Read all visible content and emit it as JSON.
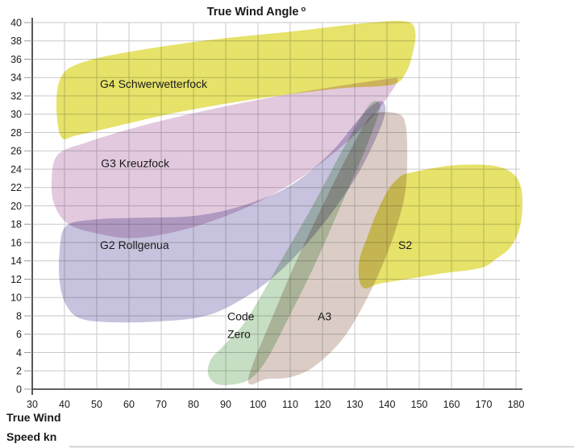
{
  "title": {
    "text": "True Wind Angle",
    "degree_suffix": "o"
  },
  "y_axis_label": {
    "line1": "True Wind",
    "line2": "Speed kn"
  },
  "chart_data": {
    "type": "area",
    "title": "True Wind Angle °",
    "xlabel": "True Wind Angle °",
    "ylabel": "True Wind Speed kn",
    "xlim": [
      30,
      180
    ],
    "ylim": [
      0,
      40
    ],
    "x_ticks": [
      30,
      40,
      50,
      60,
      70,
      80,
      90,
      100,
      110,
      120,
      130,
      140,
      150,
      160,
      170,
      180
    ],
    "y_ticks": [
      0,
      2,
      4,
      6,
      8,
      10,
      12,
      14,
      16,
      18,
      20,
      22,
      24,
      26,
      28,
      30,
      32,
      34,
      36,
      38,
      40
    ],
    "grid": true,
    "colors": {
      "grid": "#cacaca",
      "axis": "#2d2d2d",
      "tick": "#9a9a9a",
      "text": "#1a1a1a",
      "bottom_rule": "#c8c8c8"
    },
    "regions": [
      {
        "name": "G4 Schwerwetterfock",
        "color": "#e6e26a",
        "label": {
          "lines": [
            "G4 Schwerwetterfock"
          ],
          "angle": 51,
          "kn": 32.9
        },
        "outline_angle_kn": [
          [
            39,
            27.5
          ],
          [
            37.5,
            31
          ],
          [
            39,
            34.1
          ],
          [
            45,
            35.6
          ],
          [
            60,
            36.8
          ],
          [
            85,
            38.1
          ],
          [
            112.5,
            39.1
          ],
          [
            135,
            40
          ],
          [
            146.3,
            40.1
          ],
          [
            148.8,
            38.9
          ],
          [
            148,
            36.7
          ],
          [
            145.8,
            34.5
          ],
          [
            141.3,
            33.2
          ],
          [
            125,
            32.8
          ],
          [
            100,
            31.7
          ],
          [
            75,
            30.2
          ],
          [
            55,
            28.6
          ],
          [
            43.8,
            27.7
          ]
        ]
      },
      {
        "name": "G3 Kreuzfock",
        "color": "#e2c9de",
        "label": {
          "lines": [
            "G3 Kreuzfock"
          ],
          "angle": 51.3,
          "kn": 24.2
        },
        "outline_angle_kn": [
          [
            38,
            25.6
          ],
          [
            36,
            22.7
          ],
          [
            37,
            20
          ],
          [
            41.3,
            18
          ],
          [
            50,
            17
          ],
          [
            62.5,
            16.5
          ],
          [
            80,
            17.7
          ],
          [
            97.5,
            20
          ],
          [
            112.5,
            22.9
          ],
          [
            125,
            26.2
          ],
          [
            135,
            29.5
          ],
          [
            142,
            32.8
          ],
          [
            143.3,
            33.8
          ],
          [
            141.3,
            33.9
          ],
          [
            127.5,
            33.2
          ],
          [
            105,
            31.9
          ],
          [
            82.5,
            30.3
          ],
          [
            62.5,
            28.6
          ],
          [
            47.5,
            27
          ]
        ]
      },
      {
        "name": "G2 Rollgenua",
        "color": "#c7c2dd",
        "label": {
          "lines": [
            "G2 Rollgenua"
          ],
          "angle": 51,
          "kn": 15.3
        },
        "outline_angle_kn": [
          [
            40.5,
            17.8
          ],
          [
            38.5,
            15.2
          ],
          [
            38.5,
            11.7
          ],
          [
            40.5,
            9.2
          ],
          [
            45,
            7.7
          ],
          [
            55,
            7.3
          ],
          [
            70,
            7.4
          ],
          [
            83.8,
            8
          ],
          [
            95,
            9.8
          ],
          [
            106.3,
            12.7
          ],
          [
            118.8,
            17.4
          ],
          [
            130,
            22.9
          ],
          [
            137,
            27.7
          ],
          [
            139.5,
            30.3
          ],
          [
            138.5,
            31.4
          ],
          [
            135.5,
            31
          ],
          [
            131.3,
            29.5
          ],
          [
            122.5,
            25.8
          ],
          [
            110,
            22.2
          ],
          [
            95,
            20
          ],
          [
            80,
            18.9
          ],
          [
            62.5,
            18.7
          ],
          [
            48.8,
            18.5
          ]
        ]
      },
      {
        "name": "Code Zero",
        "color": "#c6dec3",
        "label": {
          "lines": [
            "Code",
            "Zero"
          ],
          "angle": 90.5,
          "kn": 7.5
        },
        "outline_angle_kn": [
          [
            85.5,
            3.3
          ],
          [
            84.5,
            1.7
          ],
          [
            87,
            0.6
          ],
          [
            92,
            0.5
          ],
          [
            97.5,
            1.1
          ],
          [
            102.5,
            3.1
          ],
          [
            108.8,
            7.3
          ],
          [
            117.5,
            13.5
          ],
          [
            126.3,
            20.5
          ],
          [
            133.8,
            26.6
          ],
          [
            137.5,
            30.2
          ],
          [
            137.5,
            31.3
          ],
          [
            135,
            31.2
          ],
          [
            131.3,
            29.3
          ],
          [
            125,
            25.3
          ],
          [
            116.3,
            19.6
          ],
          [
            106.3,
            13.5
          ],
          [
            96.3,
            7.5
          ],
          [
            89.5,
            4.8
          ]
        ]
      },
      {
        "name": "A3",
        "color": "#dbcdc6",
        "label": {
          "lines": [
            "A3"
          ],
          "angle": 118.5,
          "kn": 7.5
        },
        "outline_angle_kn": [
          [
            102.5,
            1.1
          ],
          [
            98,
            0.5
          ],
          [
            97,
            1.1
          ],
          [
            98.8,
            3.1
          ],
          [
            103.8,
            7.3
          ],
          [
            111.3,
            13.5
          ],
          [
            120,
            20
          ],
          [
            127.5,
            25.3
          ],
          [
            133.8,
            29.3
          ],
          [
            137.5,
            30.2
          ],
          [
            143.8,
            30
          ],
          [
            145.8,
            28.8
          ],
          [
            146.3,
            25.8
          ],
          [
            145.8,
            21.8
          ],
          [
            143.5,
            18.3
          ],
          [
            139.5,
            14.3
          ],
          [
            133.8,
            9.9
          ],
          [
            126.3,
            5.5
          ],
          [
            117.5,
            2.5
          ],
          [
            110,
            1.3
          ]
        ]
      },
      {
        "name": "S2",
        "color": "#e6e26a",
        "label": {
          "lines": [
            "S2"
          ],
          "angle": 143.5,
          "kn": 15.3
        },
        "outline_angle_kn": [
          [
            147,
            23.6
          ],
          [
            160,
            24.4
          ],
          [
            172.5,
            24.4
          ],
          [
            178.8,
            23.6
          ],
          [
            181.5,
            22.1
          ],
          [
            182,
            19.8
          ],
          [
            181,
            17.4
          ],
          [
            178.3,
            15.5
          ],
          [
            173.8,
            14.2
          ],
          [
            168.8,
            13.2
          ],
          [
            156.3,
            12.6
          ],
          [
            146.3,
            12
          ],
          [
            137.5,
            11.5
          ],
          [
            133,
            11
          ],
          [
            131.3,
            12.1
          ],
          [
            131.5,
            14.2
          ],
          [
            133.8,
            16.5
          ],
          [
            137,
            19.4
          ],
          [
            140.5,
            21.8
          ],
          [
            143.8,
            23.1
          ]
        ]
      }
    ]
  }
}
